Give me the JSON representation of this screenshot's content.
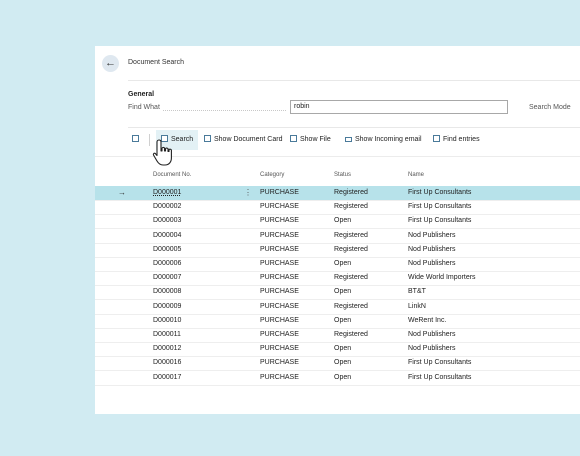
{
  "page": {
    "title": "Document Search"
  },
  "general": {
    "section_title": "General",
    "find_label": "Find What",
    "find_value": "robin",
    "search_mode_label": "Search Mode"
  },
  "toolbar": {
    "search": "Search",
    "show_document_card": "Show Document Card",
    "show_file": "Show File",
    "show_incoming_email": "Show Incoming email",
    "find_entries": "Find entries"
  },
  "columns": {
    "document_no": "Document No.",
    "category": "Category",
    "status": "Status",
    "name": "Name"
  },
  "rows": [
    {
      "doc": "D000001",
      "category": "PURCHASE",
      "status": "Registered",
      "name": "First Up Consultants",
      "selected": true
    },
    {
      "doc": "D000002",
      "category": "PURCHASE",
      "status": "Registered",
      "name": "First Up Consultants"
    },
    {
      "doc": "D000003",
      "category": "PURCHASE",
      "status": "Open",
      "name": "First Up Consultants"
    },
    {
      "doc": "D000004",
      "category": "PURCHASE",
      "status": "Registered",
      "name": "Nod Publishers"
    },
    {
      "doc": "D000005",
      "category": "PURCHASE",
      "status": "Registered",
      "name": "Nod Publishers"
    },
    {
      "doc": "D000006",
      "category": "PURCHASE",
      "status": "Open",
      "name": "Nod Publishers"
    },
    {
      "doc": "D000007",
      "category": "PURCHASE",
      "status": "Registered",
      "name": "Wide World Importers"
    },
    {
      "doc": "D000008",
      "category": "PURCHASE",
      "status": "Open",
      "name": "BT&T"
    },
    {
      "doc": "D000009",
      "category": "PURCHASE",
      "status": "Registered",
      "name": "LinkN"
    },
    {
      "doc": "D000010",
      "category": "PURCHASE",
      "status": "Open",
      "name": "WeRent Inc."
    },
    {
      "doc": "D000011",
      "category": "PURCHASE",
      "status": "Registered",
      "name": "Nod Publishers"
    },
    {
      "doc": "D000012",
      "category": "PURCHASE",
      "status": "Open",
      "name": "Nod Publishers"
    },
    {
      "doc": "D000016",
      "category": "PURCHASE",
      "status": "Open",
      "name": "First Up Consultants"
    },
    {
      "doc": "D000017",
      "category": "PURCHASE",
      "status": "Open",
      "name": "First Up Consultants"
    }
  ],
  "icons": {
    "back": "back-arrow-icon",
    "row_pointer": "row-arrow-icon",
    "kebab": "more-options-icon",
    "cursor": "hand-pointer-cursor"
  },
  "colors": {
    "background": "#d1ebf2",
    "selected_row": "#b7e2ea",
    "search_highlight": "#e3f1f5"
  }
}
